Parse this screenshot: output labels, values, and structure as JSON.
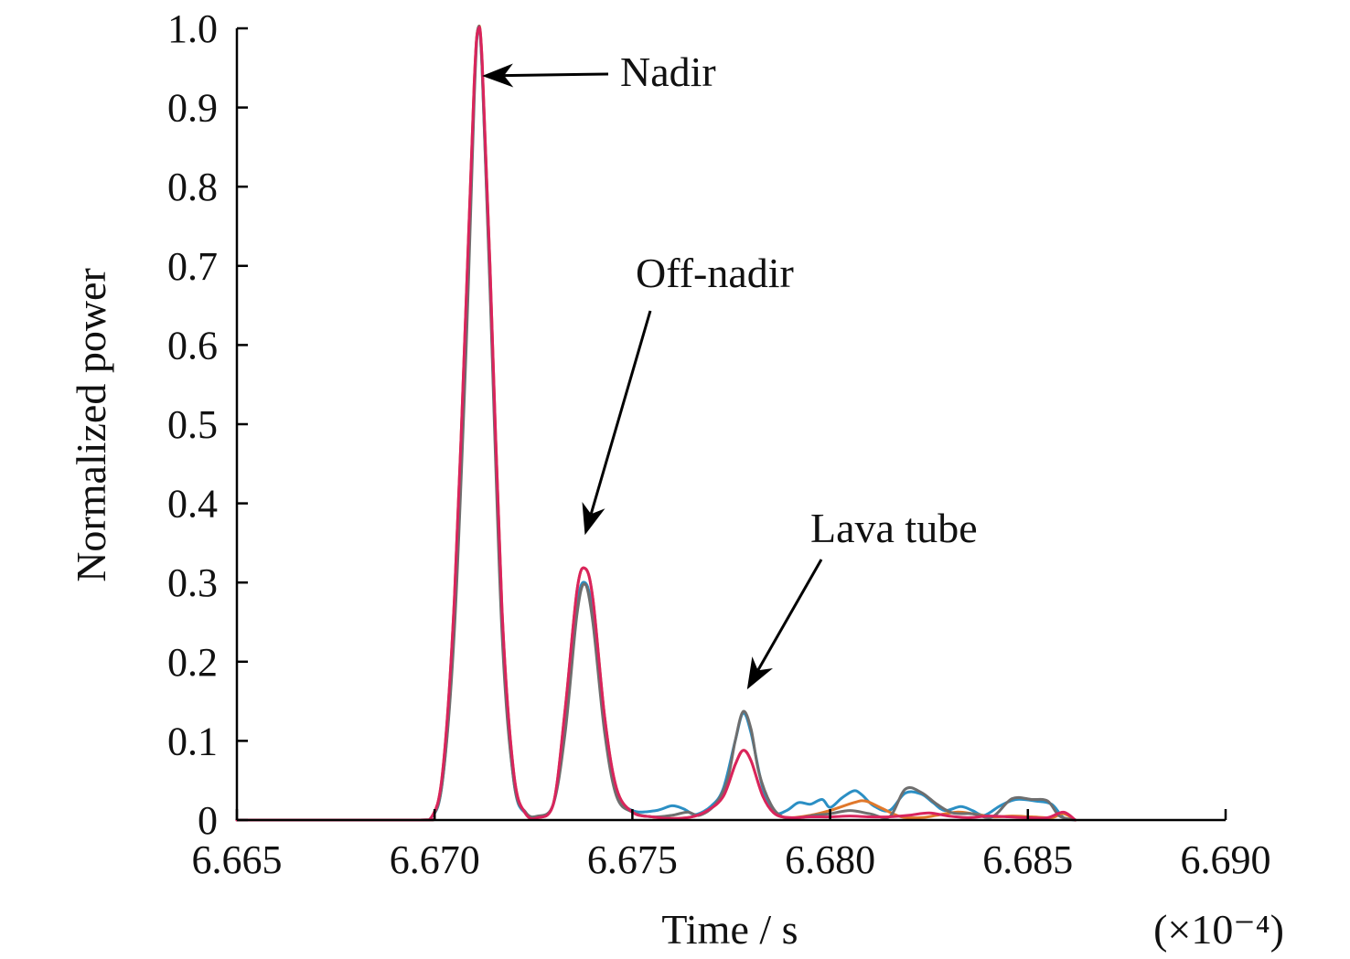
{
  "chart_data": {
    "type": "line",
    "title": "",
    "xlabel": "Time / s",
    "ylabel": "Normalized power",
    "x_multiplier_label": "(×10⁻⁴)",
    "xlim": [
      6.665,
      6.69
    ],
    "ylim": [
      0,
      1.0
    ],
    "xticks": [
      6.665,
      6.67,
      6.675,
      6.68,
      6.685,
      6.69
    ],
    "xtick_labels": [
      "6.665",
      "6.670",
      "6.675",
      "6.680",
      "6.685",
      "6.690"
    ],
    "yticks": [
      0,
      0.1,
      0.2,
      0.3,
      0.4,
      0.5,
      0.6,
      0.7,
      0.8,
      0.9,
      1.0
    ],
    "ytick_labels": [
      "0",
      "0.1",
      "0.2",
      "0.3",
      "0.4",
      "0.5",
      "0.6",
      "0.7",
      "0.8",
      "0.9",
      "1.0"
    ],
    "grid": false,
    "legend": false,
    "series": [
      {
        "color": "#2b8fc4",
        "points": [
          [
            6.665,
            0
          ],
          [
            6.6695,
            0
          ],
          [
            6.6699,
            0.002
          ],
          [
            6.6702,
            0.05
          ],
          [
            6.6705,
            0.25
          ],
          [
            6.6708,
            0.62
          ],
          [
            6.671,
            0.92
          ],
          [
            6.6711,
            1.0
          ],
          [
            6.6712,
            0.95
          ],
          [
            6.6714,
            0.68
          ],
          [
            6.6717,
            0.25
          ],
          [
            6.672,
            0.05
          ],
          [
            6.6723,
            0.008
          ],
          [
            6.6726,
            0.004
          ],
          [
            6.673,
            0.02
          ],
          [
            6.6733,
            0.12
          ],
          [
            6.6736,
            0.27
          ],
          [
            6.6738,
            0.3
          ],
          [
            6.674,
            0.26
          ],
          [
            6.6743,
            0.12
          ],
          [
            6.6746,
            0.035
          ],
          [
            6.675,
            0.012
          ],
          [
            6.6756,
            0.012
          ],
          [
            6.676,
            0.018
          ],
          [
            6.6763,
            0.014
          ],
          [
            6.6766,
            0.007
          ],
          [
            6.677,
            0.018
          ],
          [
            6.6773,
            0.04
          ],
          [
            6.6776,
            0.1
          ],
          [
            6.6778,
            0.135
          ],
          [
            6.678,
            0.11
          ],
          [
            6.6783,
            0.04
          ],
          [
            6.6786,
            0.01
          ],
          [
            6.6789,
            0.012
          ],
          [
            6.6792,
            0.022
          ],
          [
            6.6795,
            0.02
          ],
          [
            6.6798,
            0.026
          ],
          [
            6.68,
            0.016
          ],
          [
            6.6803,
            0.028
          ],
          [
            6.6806,
            0.037
          ],
          [
            6.6808,
            0.032
          ],
          [
            6.6811,
            0.018
          ],
          [
            6.6815,
            0.012
          ],
          [
            6.6819,
            0.034
          ],
          [
            6.6823,
            0.033
          ],
          [
            6.6826,
            0.022
          ],
          [
            6.6829,
            0.012
          ],
          [
            6.6833,
            0.017
          ],
          [
            6.6836,
            0.012
          ],
          [
            6.6839,
            0.006
          ],
          [
            6.6843,
            0.018
          ],
          [
            6.6847,
            0.026
          ],
          [
            6.6852,
            0.024
          ],
          [
            6.6856,
            0.02
          ],
          [
            6.6859,
            0.003
          ],
          [
            6.6862,
            0
          ]
        ]
      },
      {
        "color": "#e0782b",
        "points": [
          [
            6.665,
            0
          ],
          [
            6.6695,
            0
          ],
          [
            6.6699,
            0.002
          ],
          [
            6.6702,
            0.06
          ],
          [
            6.6705,
            0.28
          ],
          [
            6.6708,
            0.66
          ],
          [
            6.671,
            0.93
          ],
          [
            6.6711,
            1.0
          ],
          [
            6.6712,
            0.96
          ],
          [
            6.6714,
            0.7
          ],
          [
            6.6717,
            0.27
          ],
          [
            6.672,
            0.06
          ],
          [
            6.6723,
            0.008
          ],
          [
            6.6726,
            0.003
          ],
          [
            6.673,
            0.02
          ],
          [
            6.6733,
            0.14
          ],
          [
            6.6736,
            0.29
          ],
          [
            6.6738,
            0.318
          ],
          [
            6.674,
            0.28
          ],
          [
            6.6743,
            0.13
          ],
          [
            6.6746,
            0.04
          ],
          [
            6.675,
            0.01
          ],
          [
            6.6755,
            0.004
          ],
          [
            6.676,
            0.002
          ],
          [
            6.6765,
            0.004
          ],
          [
            6.6769,
            0.012
          ],
          [
            6.6773,
            0.03
          ],
          [
            6.6776,
            0.07
          ],
          [
            6.6778,
            0.088
          ],
          [
            6.678,
            0.075
          ],
          [
            6.6783,
            0.03
          ],
          [
            6.6786,
            0.008
          ],
          [
            6.679,
            0.003
          ],
          [
            6.6795,
            0.006
          ],
          [
            6.68,
            0.012
          ],
          [
            6.6806,
            0.022
          ],
          [
            6.6809,
            0.024
          ],
          [
            6.6813,
            0.015
          ],
          [
            6.6818,
            0.004
          ],
          [
            6.6823,
            0.003
          ],
          [
            6.6827,
            0.006
          ],
          [
            6.6832,
            0.01
          ],
          [
            6.6836,
            0.008
          ],
          [
            6.6841,
            0.004
          ],
          [
            6.6846,
            0.005
          ],
          [
            6.6851,
            0.004
          ],
          [
            6.6856,
            0.003
          ],
          [
            6.6859,
            0.008
          ],
          [
            6.6862,
            0
          ]
        ]
      },
      {
        "color": "#6e6e6e",
        "points": [
          [
            6.665,
            0
          ],
          [
            6.6695,
            0
          ],
          [
            6.6699,
            0.002
          ],
          [
            6.6702,
            0.05
          ],
          [
            6.6705,
            0.24
          ],
          [
            6.6708,
            0.6
          ],
          [
            6.671,
            0.91
          ],
          [
            6.6711,
            1.0
          ],
          [
            6.6712,
            0.95
          ],
          [
            6.6714,
            0.67
          ],
          [
            6.6717,
            0.24
          ],
          [
            6.672,
            0.05
          ],
          [
            6.6723,
            0.01
          ],
          [
            6.6726,
            0.005
          ],
          [
            6.673,
            0.02
          ],
          [
            6.6733,
            0.11
          ],
          [
            6.6736,
            0.26
          ],
          [
            6.6738,
            0.298
          ],
          [
            6.674,
            0.25
          ],
          [
            6.6743,
            0.11
          ],
          [
            6.6746,
            0.03
          ],
          [
            6.675,
            0.01
          ],
          [
            6.6755,
            0.004
          ],
          [
            6.676,
            0.006
          ],
          [
            6.6764,
            0.01
          ],
          [
            6.6767,
            0.006
          ],
          [
            6.6771,
            0.02
          ],
          [
            6.6774,
            0.05
          ],
          [
            6.6776,
            0.1
          ],
          [
            6.6778,
            0.137
          ],
          [
            6.678,
            0.115
          ],
          [
            6.6782,
            0.06
          ],
          [
            6.6785,
            0.02
          ],
          [
            6.6788,
            0.004
          ],
          [
            6.6792,
            0.003
          ],
          [
            6.6796,
            0.006
          ],
          [
            6.68,
            0.008
          ],
          [
            6.6805,
            0.012
          ],
          [
            6.681,
            0.008
          ],
          [
            6.6815,
            0.004
          ],
          [
            6.6819,
            0.039
          ],
          [
            6.6823,
            0.035
          ],
          [
            6.6827,
            0.02
          ],
          [
            6.6831,
            0.009
          ],
          [
            6.6836,
            0.008
          ],
          [
            6.6841,
            0.004
          ],
          [
            6.6846,
            0.027
          ],
          [
            6.6851,
            0.026
          ],
          [
            6.6855,
            0.024
          ],
          [
            6.6858,
            0.005
          ],
          [
            6.6862,
            0
          ]
        ]
      },
      {
        "color": "#d9245d",
        "points": [
          [
            6.665,
            0
          ],
          [
            6.6695,
            0
          ],
          [
            6.6699,
            0.002
          ],
          [
            6.6702,
            0.06
          ],
          [
            6.6705,
            0.28
          ],
          [
            6.6708,
            0.66
          ],
          [
            6.671,
            0.93
          ],
          [
            6.6711,
            0.998
          ],
          [
            6.6712,
            0.96
          ],
          [
            6.6714,
            0.7
          ],
          [
            6.6717,
            0.27
          ],
          [
            6.672,
            0.06
          ],
          [
            6.6723,
            0.008
          ],
          [
            6.6726,
            0.003
          ],
          [
            6.673,
            0.02
          ],
          [
            6.6733,
            0.14
          ],
          [
            6.6736,
            0.29
          ],
          [
            6.6738,
            0.318
          ],
          [
            6.674,
            0.28
          ],
          [
            6.6743,
            0.13
          ],
          [
            6.6746,
            0.04
          ],
          [
            6.675,
            0.01
          ],
          [
            6.6755,
            0.004
          ],
          [
            6.676,
            0.002
          ],
          [
            6.6765,
            0.004
          ],
          [
            6.6769,
            0.012
          ],
          [
            6.6773,
            0.03
          ],
          [
            6.6776,
            0.07
          ],
          [
            6.6778,
            0.088
          ],
          [
            6.678,
            0.075
          ],
          [
            6.6783,
            0.03
          ],
          [
            6.6786,
            0.008
          ],
          [
            6.679,
            0.003
          ],
          [
            6.6795,
            0.004
          ],
          [
            6.68,
            0.004
          ],
          [
            6.6805,
            0.005
          ],
          [
            6.681,
            0.004
          ],
          [
            6.6815,
            0.004
          ],
          [
            6.682,
            0.006
          ],
          [
            6.6825,
            0.009
          ],
          [
            6.683,
            0.005
          ],
          [
            6.6835,
            0.003
          ],
          [
            6.684,
            0.005
          ],
          [
            6.6845,
            0.004
          ],
          [
            6.685,
            0.003
          ],
          [
            6.6855,
            0.003
          ],
          [
            6.6859,
            0.01
          ],
          [
            6.6862,
            0
          ]
        ]
      }
    ],
    "annotations": [
      {
        "text": "Nadir",
        "points_to": [
          6.6712,
          0.94
        ]
      },
      {
        "text": "Off-nadir",
        "points_to": [
          6.6738,
          0.36
        ]
      },
      {
        "text": "Lava tube",
        "points_to": [
          6.6779,
          0.165
        ]
      }
    ]
  }
}
